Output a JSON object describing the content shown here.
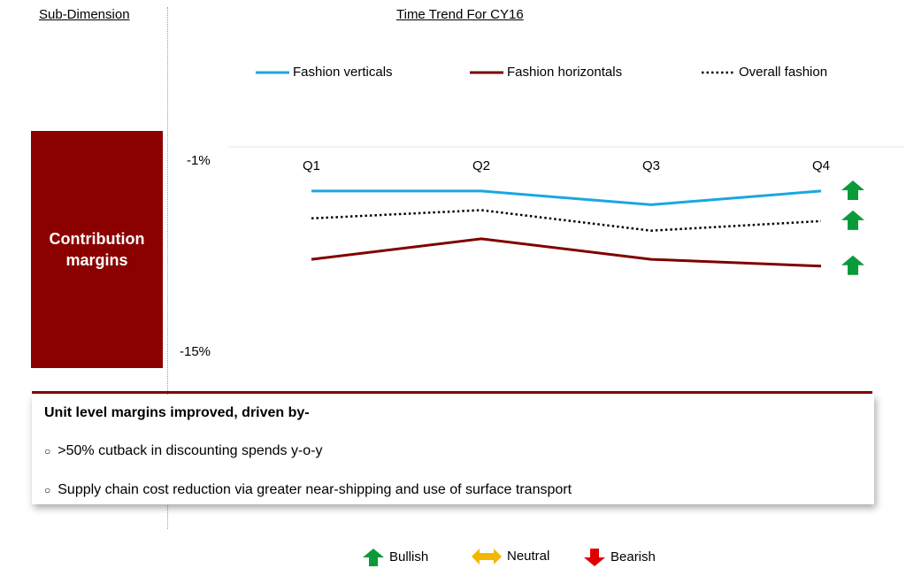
{
  "headers": {
    "sub_dimension": "Sub-Dimension",
    "time_trend": "Time Trend For CY16"
  },
  "dimension": {
    "line1": "Contribution",
    "line2": "margins"
  },
  "colors": {
    "fashion_verticals": "#1aa7e0",
    "fashion_horizontals": "#7f0000",
    "overall_fashion": "#000000",
    "dimension_box": "#8b0000",
    "bullish": "#0a9a3a",
    "neutral": "#f2b800",
    "bearish": "#e00000"
  },
  "chart_data": {
    "type": "line",
    "categories": [
      "Q1",
      "Q2",
      "Q3",
      "Q4"
    ],
    "yticks": [
      "-1%",
      "-15%"
    ],
    "ylim": [
      -15,
      -1
    ],
    "series": [
      {
        "name": "Fashion verticals",
        "values": [
          -3.2,
          -3.2,
          -4.2,
          -3.2
        ],
        "style": "solid",
        "color": "#1aa7e0",
        "trend": "Bullish"
      },
      {
        "name": "Overall fashion",
        "values": [
          -5.2,
          -4.6,
          -6.1,
          -5.4
        ],
        "style": "dotted",
        "color": "#000000",
        "trend": "Bullish"
      },
      {
        "name": "Fashion horizontals",
        "values": [
          -8.2,
          -6.7,
          -8.2,
          -8.7
        ],
        "style": "solid",
        "color": "#7f0000",
        "trend": "Bullish"
      }
    ],
    "legend": [
      {
        "label": "Fashion verticals",
        "style": "solid",
        "color": "#1aa7e0"
      },
      {
        "label": "Fashion horizontals",
        "style": "solid",
        "color": "#7f0000"
      },
      {
        "label": "Overall fashion",
        "style": "dotted",
        "color": "#000000"
      }
    ],
    "grid": false,
    "legend_position": "top"
  },
  "notes": {
    "title": "Unit level margins improved, driven by-",
    "bullets": [
      ">50% cutback in discounting spends y-o-y",
      "Supply chain cost reduction via greater near-shipping and use of surface transport"
    ]
  },
  "key": [
    {
      "label": "Bullish",
      "icon": "up-arrow-icon",
      "color": "#0a9a3a"
    },
    {
      "label": "Neutral",
      "icon": "left-right-arrow-icon",
      "color": "#f2b800"
    },
    {
      "label": "Bearish",
      "icon": "down-arrow-icon",
      "color": "#e00000"
    }
  ]
}
